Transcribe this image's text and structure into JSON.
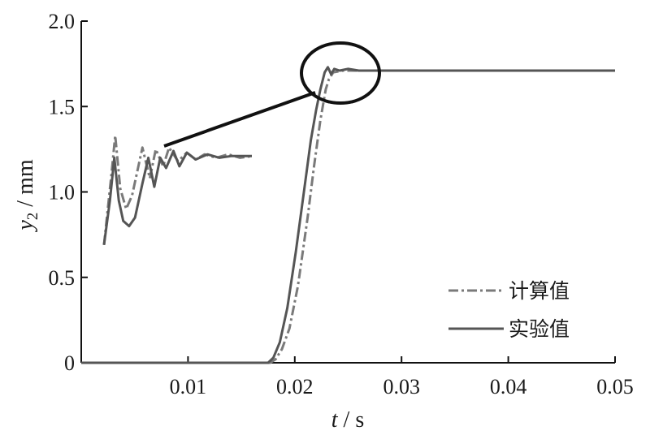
{
  "chart_data": {
    "type": "line",
    "xlabel": {
      "var": "t",
      "unit": " / s"
    },
    "ylabel": {
      "var": "y",
      "sub": "2",
      "unit": " / mm"
    },
    "xlim": [
      0,
      0.05
    ],
    "ylim": [
      0,
      2.0
    ],
    "xticks": [
      0.01,
      0.02,
      0.03,
      0.04,
      0.05
    ],
    "xtick_labels": [
      "0.01",
      "0.02",
      "0.03",
      "0.04",
      "0.05"
    ],
    "yticks": [
      0,
      0.5,
      1.0,
      1.5,
      2.0
    ],
    "ytick_labels": [
      "0",
      "0.5",
      "1.0",
      "1.5",
      "2.0"
    ],
    "grid": false,
    "legend_position": "bottom-right",
    "series": [
      {
        "name": "计算值",
        "style": "dash-dot",
        "color": "#7a7a7a",
        "x": [
          0,
          0.0177,
          0.0182,
          0.0188,
          0.0195,
          0.0203,
          0.0212,
          0.0218,
          0.0224,
          0.0229,
          0.0232,
          0.0236,
          0.0245,
          0.026,
          0.03,
          0.04,
          0.05
        ],
        "y": [
          0,
          0,
          0.02,
          0.08,
          0.2,
          0.45,
          0.85,
          1.15,
          1.42,
          1.6,
          1.66,
          1.7,
          1.71,
          1.71,
          1.71,
          1.71,
          1.71
        ]
      },
      {
        "name": "实验值",
        "style": "solid",
        "color": "#555555",
        "x": [
          0,
          0.0175,
          0.018,
          0.0186,
          0.0193,
          0.0201,
          0.0209,
          0.0215,
          0.022,
          0.0224,
          0.0228,
          0.0231,
          0.0234,
          0.0237,
          0.0242,
          0.025,
          0.026,
          0.03,
          0.04,
          0.05
        ],
        "y": [
          0,
          0,
          0.03,
          0.12,
          0.32,
          0.65,
          1.02,
          1.3,
          1.48,
          1.6,
          1.7,
          1.73,
          1.69,
          1.72,
          1.71,
          1.72,
          1.71,
          1.71,
          1.71,
          1.71
        ]
      }
    ],
    "inset": {
      "description_free": true,
      "series": [
        {
          "name": "计算值",
          "points": [
            [
              0,
              0.69
            ],
            [
              0.25,
              1.1
            ],
            [
              0.38,
              1.33
            ],
            [
              0.55,
              1.02
            ],
            [
              0.75,
              0.9
            ],
            [
              0.95,
              0.98
            ],
            [
              1.3,
              1.26
            ],
            [
              1.55,
              1.08
            ],
            [
              1.75,
              1.25
            ],
            [
              2.0,
              1.15
            ],
            [
              2.2,
              1.26
            ],
            [
              2.5,
              1.18
            ],
            [
              2.8,
              1.23
            ],
            [
              3.1,
              1.19
            ],
            [
              3.4,
              1.22
            ],
            [
              3.8,
              1.2
            ],
            [
              4.2,
              1.22
            ],
            [
              4.6,
              1.2
            ],
            [
              5.0,
              1.21
            ]
          ]
        },
        {
          "name": "实验值",
          "points": [
            [
              0,
              0.69
            ],
            [
              0.2,
              0.95
            ],
            [
              0.35,
              1.2
            ],
            [
              0.5,
              0.95
            ],
            [
              0.65,
              0.83
            ],
            [
              0.85,
              0.8
            ],
            [
              1.05,
              0.85
            ],
            [
              1.3,
              1.05
            ],
            [
              1.5,
              1.2
            ],
            [
              1.7,
              1.03
            ],
            [
              1.9,
              1.2
            ],
            [
              2.1,
              1.14
            ],
            [
              2.35,
              1.24
            ],
            [
              2.55,
              1.15
            ],
            [
              2.8,
              1.23
            ],
            [
              3.1,
              1.19
            ],
            [
              3.5,
              1.22
            ],
            [
              3.9,
              1.2
            ],
            [
              4.3,
              1.21
            ],
            [
              5.0,
              1.21
            ]
          ]
        }
      ]
    }
  }
}
